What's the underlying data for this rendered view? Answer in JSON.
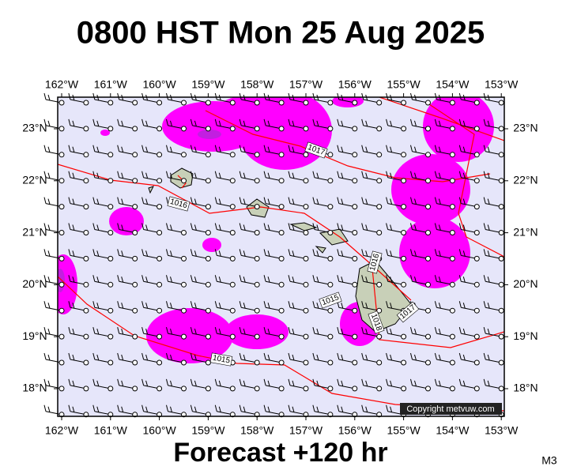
{
  "title": "0800 HST Mon 25 Aug 2025",
  "footer": "Forecast +120 hr",
  "model": "M3",
  "copyright": "Copyright metvuw.com",
  "lon_labels": [
    "162°W",
    "161°W",
    "160°W",
    "159°W",
    "158°W",
    "157°W",
    "156°W",
    "155°W",
    "154°W",
    "153°W"
  ],
  "lat_labels": [
    "23°N",
    "22°N",
    "21°N",
    "20°N",
    "19°N",
    "18°N"
  ],
  "isobar_labels": [
    "1017",
    "1016",
    "1016",
    "1015",
    "1018",
    "1017",
    "1015"
  ]
}
